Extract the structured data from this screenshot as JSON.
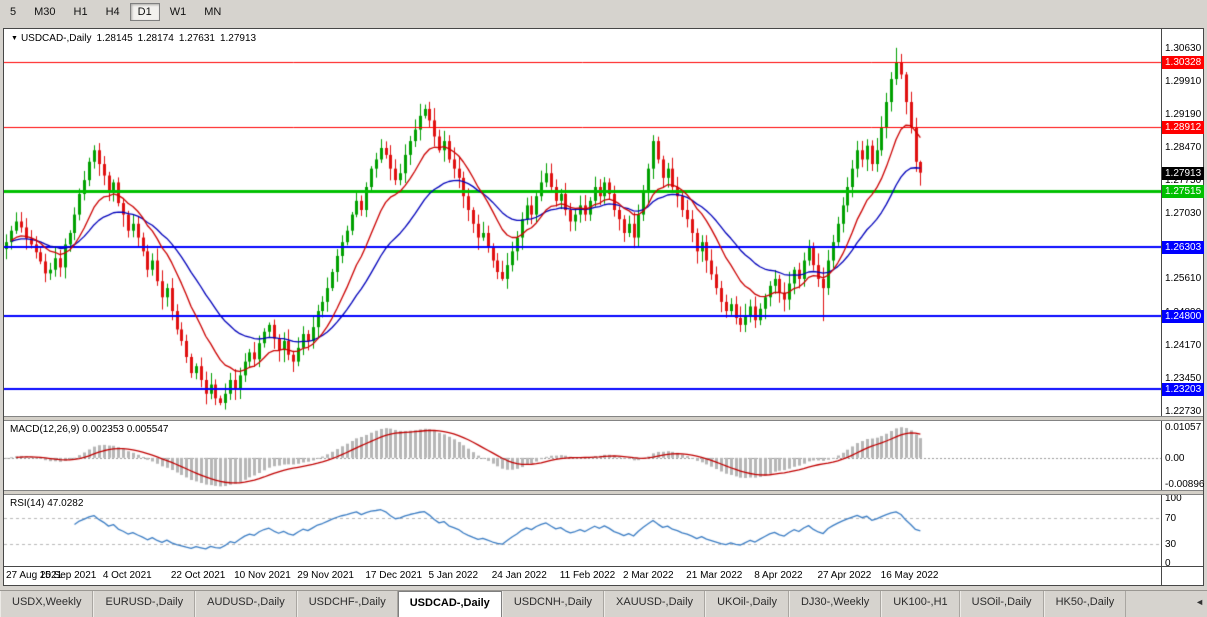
{
  "toolbar": {
    "timeframes": [
      {
        "label": "5",
        "selected": false
      },
      {
        "label": "M30",
        "selected": false
      },
      {
        "label": "H1",
        "selected": false
      },
      {
        "label": "H4",
        "selected": false
      },
      {
        "label": "D1",
        "selected": true
      },
      {
        "label": "W1",
        "selected": false
      },
      {
        "label": "MN",
        "selected": false
      }
    ]
  },
  "chart_data": {
    "type": "candlestick",
    "symbol": "USDCAD-",
    "period": "Daily",
    "header": {
      "marker": "▼",
      "name": "USDCAD-,Daily",
      "open": "1.28145",
      "high": "1.28174",
      "low": "1.27631",
      "close": "1.27913"
    },
    "price_axis": {
      "labels": [
        "1.30630",
        "1.29910",
        "1.29190",
        "1.28470",
        "1.27750",
        "1.27030",
        "1.26310",
        "1.25610",
        "1.24890",
        "1.24170",
        "1.23450",
        "1.22730"
      ]
    },
    "x_axis": {
      "labels": [
        {
          "text": "27 Aug 2021",
          "bar": 0
        },
        {
          "text": "15 Sep 2021",
          "bar": 13
        },
        {
          "text": "4 Oct 2021",
          "bar": 26
        },
        {
          "text": "22 Oct 2021",
          "bar": 40
        },
        {
          "text": "10 Nov 2021",
          "bar": 53
        },
        {
          "text": "29 Nov 2021",
          "bar": 66
        },
        {
          "text": "17 Dec 2021",
          "bar": 80
        },
        {
          "text": "5 Jan 2022",
          "bar": 93
        },
        {
          "text": "24 Jan 2022",
          "bar": 106
        },
        {
          "text": "11 Feb 2022",
          "bar": 120
        },
        {
          "text": "2 Mar 2022",
          "bar": 133
        },
        {
          "text": "21 Mar 2022",
          "bar": 146
        },
        {
          "text": "8 Apr 2022",
          "bar": 160
        },
        {
          "text": "27 Apr 2022",
          "bar": 173
        },
        {
          "text": "16 May 2022",
          "bar": 186
        }
      ]
    },
    "total_slots": 238,
    "bars": {
      "closes": [
        1.264,
        1.2665,
        1.2685,
        1.2672,
        1.2648,
        1.2635,
        1.2618,
        1.2598,
        1.2572,
        1.258,
        1.2605,
        1.2585,
        1.2635,
        1.266,
        1.27,
        1.2745,
        1.2775,
        1.2815,
        1.284,
        1.281,
        1.2785,
        1.275,
        1.277,
        1.2725,
        1.27,
        1.2665,
        1.268,
        1.265,
        1.262,
        1.258,
        1.26,
        1.2555,
        1.252,
        1.254,
        1.249,
        1.245,
        1.2425,
        1.239,
        1.2355,
        1.237,
        1.234,
        1.231,
        1.233,
        1.23,
        1.229,
        1.231,
        1.234,
        1.232,
        1.235,
        1.238,
        1.24,
        1.2385,
        1.242,
        1.2445,
        1.246,
        1.243,
        1.2405,
        1.2425,
        1.2395,
        1.238,
        1.241,
        1.244,
        1.2425,
        1.2455,
        1.249,
        1.251,
        1.254,
        1.2575,
        1.261,
        1.264,
        1.2665,
        1.27,
        1.273,
        1.271,
        1.276,
        1.28,
        1.282,
        1.2845,
        1.283,
        1.28,
        1.2775,
        1.279,
        1.283,
        1.286,
        1.2885,
        1.2915,
        1.293,
        1.2905,
        1.287,
        1.284,
        1.286,
        1.282,
        1.28,
        1.278,
        1.274,
        1.271,
        1.268,
        1.265,
        1.266,
        1.263,
        1.26,
        1.2575,
        1.256,
        1.259,
        1.262,
        1.265,
        1.269,
        1.272,
        1.27,
        1.274,
        1.277,
        1.279,
        1.276,
        1.273,
        1.2745,
        1.271,
        1.2685,
        1.27,
        1.272,
        1.27,
        1.273,
        1.276,
        1.274,
        1.277,
        1.2745,
        1.271,
        1.269,
        1.266,
        1.268,
        1.265,
        1.27,
        1.275,
        1.28,
        1.286,
        1.282,
        1.278,
        1.28,
        1.276,
        1.274,
        1.271,
        1.269,
        1.266,
        1.262,
        1.264,
        1.26,
        1.257,
        1.254,
        1.251,
        1.249,
        1.2505,
        1.2475,
        1.246,
        1.248,
        1.25,
        1.247,
        1.2495,
        1.252,
        1.2545,
        1.256,
        1.253,
        1.2515,
        1.255,
        1.258,
        1.256,
        1.26,
        1.263,
        1.259,
        1.256,
        1.254,
        1.26,
        1.264,
        1.268,
        1.272,
        1.276,
        1.28,
        1.284,
        1.282,
        1.285,
        1.281,
        1.284,
        1.289,
        1.2945,
        1.2995,
        1.303,
        1.3005,
        1.2945,
        1.289,
        1.2815,
        1.27913
      ],
      "last_open": 1.28145,
      "special_wicks": {
        "44": {
          "low": 1.2285
        },
        "102": {
          "low": 1.2556
        },
        "168": {
          "low": 1.2468
        },
        "183": {
          "high": 1.3063
        },
        "188": {
          "high": 1.28174,
          "low": 1.27631
        }
      }
    },
    "colors": {
      "bull": "#00a000",
      "bear": "#e01010",
      "background": "#ffffff"
    },
    "moving_averages": [
      {
        "type": "EMA",
        "period": 12,
        "color": "#cc0000"
      },
      {
        "type": "EMA",
        "period": 26,
        "color": "#0000bb"
      }
    ],
    "hlines": [
      {
        "price": 1.30328,
        "label": "1.30328",
        "color": "#ff0000",
        "width": 1
      },
      {
        "price": 1.28912,
        "label": "1.28912",
        "color": "#ff0000",
        "width": 1
      },
      {
        "price": 1.27515,
        "label": "1.27515",
        "color": "#00c000",
        "width": 3
      },
      {
        "price": 1.26303,
        "label": "1.26303",
        "color": "#0000ff",
        "width": 2
      },
      {
        "price": 1.248,
        "label": "1.24800",
        "color": "#0000ff",
        "width": 2
      },
      {
        "price": 1.23203,
        "label": "1.23203",
        "color": "#0000ff",
        "width": 2
      }
    ],
    "current_price": {
      "price": 1.27913,
      "label": "1.27913",
      "color": "#000000"
    },
    "macd": {
      "label": "MACD(12,26,9)",
      "values_text": "0.002353 0.005547",
      "fast": 12,
      "slow": 26,
      "signal_period": 9,
      "histogram_color": "#b6b6b6",
      "signal_color": "#c00000",
      "axis_labels": [
        {
          "text": "0.01057",
          "value": 0.01057
        },
        {
          "text": "0.00",
          "value": 0
        },
        {
          "text": "-0.00896",
          "value": -0.00896
        }
      ],
      "range": {
        "min": -0.0102,
        "max": 0.0118
      }
    },
    "rsi": {
      "label": "RSI(14)",
      "value_text": "47.0282",
      "period": 14,
      "color": "#3b7dc4",
      "levels": [
        70,
        30
      ],
      "axis_labels": [
        {
          "text": "100",
          "value": 100
        },
        {
          "text": "70",
          "value": 70
        },
        {
          "text": "30",
          "value": 30
        },
        {
          "text": "0",
          "value": 0
        }
      ]
    }
  },
  "bottom_tabs": {
    "tabs": [
      "USDX,Weekly",
      "EURUSD-,Daily",
      "AUDUSD-,Daily",
      "USDCHF-,Daily",
      "USDCAD-,Daily",
      "USDCNH-,Daily",
      "XAUUSD-,Daily",
      "UKOil-,Daily",
      "DJ30-,Weekly",
      "UK100-,H1",
      "USOil-,Daily",
      "HK50-,Daily"
    ],
    "active_index": 4,
    "scroll_left_icon": "◄"
  }
}
